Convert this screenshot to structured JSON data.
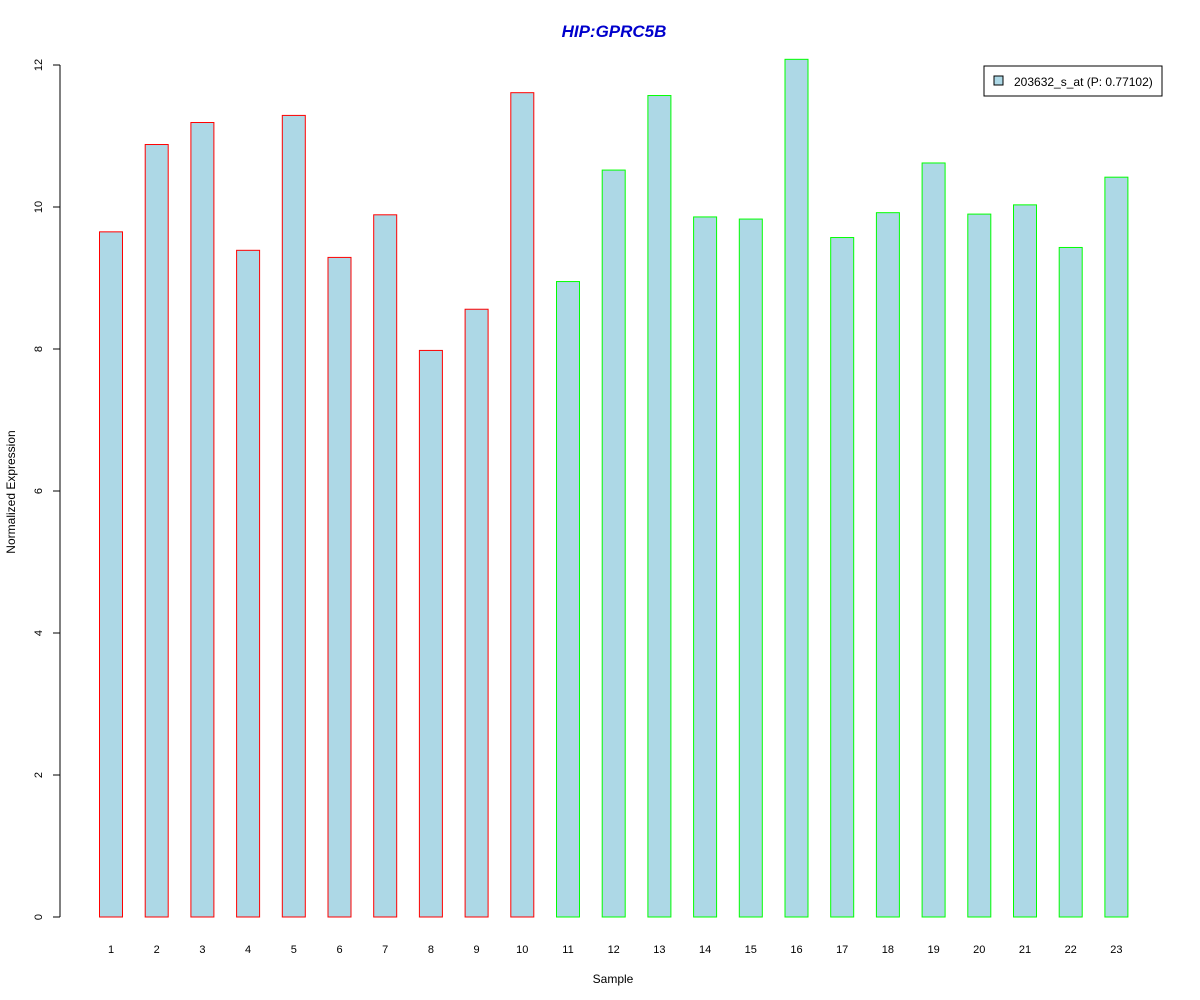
{
  "colors": {
    "bar_fill": "#add8e6",
    "group1_border": "#ff0000",
    "group2_border": "#00ff00",
    "title": "#0000cc",
    "axis": "#000000"
  },
  "chart_data": {
    "type": "bar",
    "title": "HIP:GPRC5B",
    "xlabel": "Sample",
    "ylabel": "Normalized Expression",
    "ylim": [
      0,
      12
    ],
    "yticks": [
      0,
      2,
      4,
      6,
      8,
      10,
      12
    ],
    "grid": false,
    "legend_position": "top-right",
    "categories": [
      "1",
      "2",
      "3",
      "4",
      "5",
      "6",
      "7",
      "8",
      "9",
      "10",
      "11",
      "12",
      "13",
      "14",
      "15",
      "16",
      "17",
      "18",
      "19",
      "20",
      "21",
      "22",
      "23"
    ],
    "series": [
      {
        "name": "203632_s_at (P: 0.77102)",
        "values": [
          9.65,
          10.88,
          11.19,
          9.39,
          11.29,
          9.29,
          9.89,
          7.98,
          8.56,
          11.61,
          8.95,
          10.52,
          11.57,
          9.86,
          9.83,
          12.08,
          9.57,
          9.92,
          10.62,
          9.9,
          10.03,
          9.43,
          10.42
        ]
      }
    ],
    "groups": [
      1,
      1,
      1,
      1,
      1,
      1,
      1,
      1,
      1,
      1,
      2,
      2,
      2,
      2,
      2,
      2,
      2,
      2,
      2,
      2,
      2,
      2,
      2
    ]
  }
}
